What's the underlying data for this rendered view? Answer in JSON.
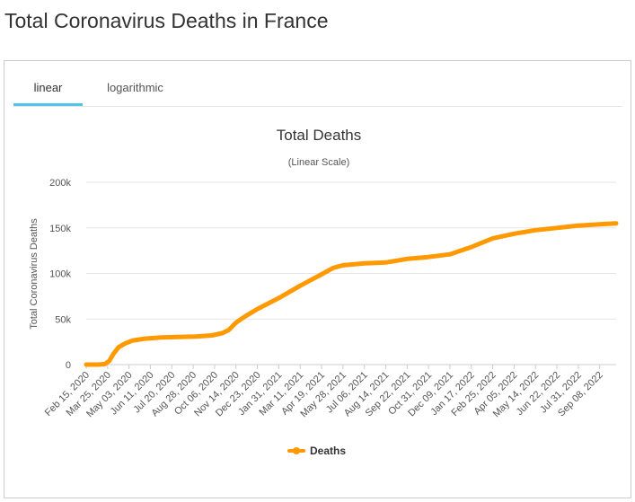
{
  "page": {
    "title": "Total Coronavirus Deaths in France"
  },
  "tabs": [
    {
      "label": "linear",
      "active": true
    },
    {
      "label": "logarithmic",
      "active": false
    }
  ],
  "colors": {
    "accent": "#4ec3ec",
    "series": "#ff9900",
    "grid": "#e6e6e6"
  },
  "chart_data": {
    "type": "line",
    "title": "Total Deaths",
    "subtitle": "(Linear Scale)",
    "ylabel": "Total Coronavirus Deaths",
    "xlabel": "",
    "ylim": [
      0,
      200000
    ],
    "yticks": [
      0,
      50000,
      100000,
      150000,
      200000
    ],
    "ytick_labels": [
      "0",
      "50k",
      "100k",
      "150k",
      "200k"
    ],
    "x_range": [
      "2020-02-15",
      "2022-10-08"
    ],
    "xtick_labels": [
      "Feb 15, 2020",
      "Mar 25, 2020",
      "May 03, 2020",
      "Jun 11, 2020",
      "Jul 20, 2020",
      "Aug 28, 2020",
      "Oct 06, 2020",
      "Nov 14, 2020",
      "Dec 23, 2020",
      "Jan 31, 2021",
      "Mar 11, 2021",
      "Apr 19, 2021",
      "May 28, 2021",
      "Jul 06, 2021",
      "Aug 14, 2021",
      "Sep 22, 2021",
      "Oct 31, 2021",
      "Dec 09, 2021",
      "Jan 17, 2022",
      "Feb 25, 2022",
      "Apr 05, 2022",
      "May 14, 2022",
      "Jun 22, 2022",
      "Jul 31, 2022",
      "Sep 08, 2022"
    ],
    "grid": true,
    "legend_position": "bottom-center",
    "series": [
      {
        "name": "Deaths",
        "color": "#ff9900",
        "points": [
          [
            "2020-02-15",
            0
          ],
          [
            "2020-03-08",
            0
          ],
          [
            "2020-03-20",
            600
          ],
          [
            "2020-03-28",
            4000
          ],
          [
            "2020-04-05",
            12000
          ],
          [
            "2020-04-14",
            19000
          ],
          [
            "2020-04-25",
            23000
          ],
          [
            "2020-05-10",
            26500
          ],
          [
            "2020-06-01",
            28500
          ],
          [
            "2020-07-01",
            29800
          ],
          [
            "2020-08-01",
            30300
          ],
          [
            "2020-09-01",
            30700
          ],
          [
            "2020-10-01",
            32000
          ],
          [
            "2020-10-20",
            34500
          ],
          [
            "2020-11-01",
            38000
          ],
          [
            "2020-11-14",
            46000
          ],
          [
            "2020-12-01",
            53000
          ],
          [
            "2020-12-23",
            61000
          ],
          [
            "2021-01-31",
            73000
          ],
          [
            "2021-03-11",
            86500
          ],
          [
            "2021-04-19",
            99000
          ],
          [
            "2021-05-10",
            106000
          ],
          [
            "2021-05-28",
            109000
          ],
          [
            "2021-07-06",
            111000
          ],
          [
            "2021-08-14",
            112000
          ],
          [
            "2021-09-22",
            116000
          ],
          [
            "2021-10-31",
            118000
          ],
          [
            "2021-12-09",
            121000
          ],
          [
            "2022-01-17",
            129000
          ],
          [
            "2022-02-25",
            138500
          ],
          [
            "2022-04-05",
            143500
          ],
          [
            "2022-05-14",
            147500
          ],
          [
            "2022-06-22",
            150000
          ],
          [
            "2022-07-31",
            152500
          ],
          [
            "2022-09-08",
            154000
          ],
          [
            "2022-10-08",
            155000
          ]
        ]
      }
    ]
  }
}
